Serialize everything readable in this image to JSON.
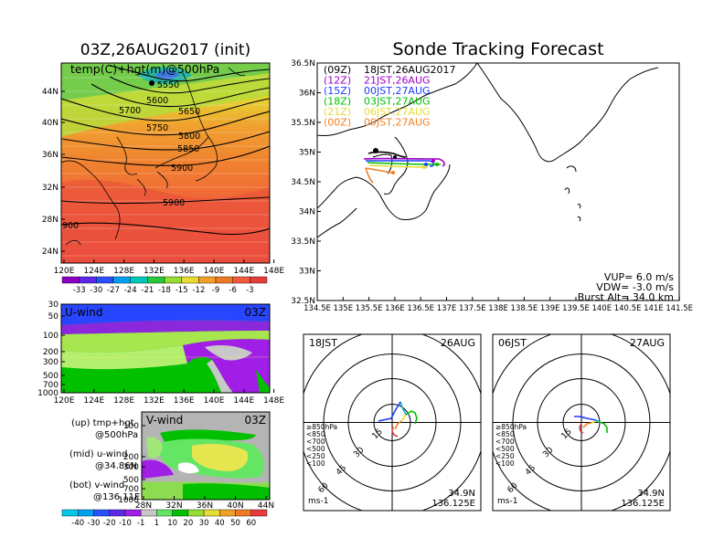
{
  "header": {
    "init_title": "03Z,26AUG2017 (init)",
    "main_title": "Sonde Tracking Forecast"
  },
  "colors": {
    "purple": "#a000c8",
    "blue": "#1e3cff",
    "green": "#00c000",
    "yellow": "#e6dc32",
    "orange": "#f08228",
    "red": "#e63c3c",
    "black": "#000000",
    "sea": "#ffffff"
  },
  "map500": {
    "label": "temp(C)+hgt(m)@500hPa",
    "lat_ticks": [
      "44N",
      "40N",
      "36N",
      "32N",
      "28N",
      "24N"
    ],
    "lon_ticks": [
      "120E",
      "124E",
      "128E",
      "132E",
      "136E",
      "140E",
      "144E",
      "148E"
    ],
    "contour_labels": [
      "5550",
      "5600",
      "5650",
      "5700",
      "5750",
      "5800",
      "5850",
      "5900",
      "5900",
      "900"
    ],
    "colorbar_labels": [
      "-33",
      "-30",
      "-27",
      "-24",
      "-21",
      "-18",
      "-15",
      "-12",
      "-9",
      "-6",
      "-3"
    ]
  },
  "uwind": {
    "label": "U-wind",
    "time": "03Z",
    "p_ticks": [
      "30",
      "50",
      "100",
      "200",
      "300",
      "500",
      "700",
      "1000"
    ],
    "lon_ticks": [
      "120E",
      "124E",
      "128E",
      "132E",
      "136E",
      "140E",
      "144E",
      "148E"
    ]
  },
  "vwind": {
    "label": "V-wind",
    "time": "03Z",
    "p_ticks": [
      "100",
      "200",
      "300",
      "500",
      "700",
      "1000"
    ],
    "lat_ticks": [
      "28N",
      "32N",
      "36N",
      "40N",
      "44N"
    ]
  },
  "legend_text": {
    "up1": "(up)  tmp+hgt",
    "up2": "@500hPa",
    "mid1": "(mid)  u-wind",
    "mid2": "@34.86N",
    "bot1": "(bot)  v-wind",
    "bot2": "@136.11E"
  },
  "wind_colorbar_labels": [
    "-40",
    "-30",
    "-20",
    "-10",
    "-1",
    "1",
    "10",
    "20",
    "30",
    "40",
    "50",
    "60"
  ],
  "track_map": {
    "lat_ticks": [
      "36.5N",
      "36N",
      "35.5N",
      "35N",
      "34.5N",
      "34N",
      "33.5N",
      "33N",
      "32.5N"
    ],
    "lon_ticks": [
      "134.5E",
      "135E",
      "135.5E",
      "136E",
      "136.5E",
      "137E",
      "137.5E",
      "138E",
      "138.5E",
      "139E",
      "139.5E",
      "140E",
      "140.5E",
      "141E",
      "141.5E"
    ],
    "legend": [
      {
        "utc": "(09Z)",
        "jst": "18JST,26AUG2017",
        "color": "#000000"
      },
      {
        "utc": "(12Z)",
        "jst": "21JST,26AUG",
        "color": "#a000c8"
      },
      {
        "utc": "(15Z)",
        "jst": "00JST,27AUG",
        "color": "#1e3cff"
      },
      {
        "utc": "(18Z)",
        "jst": "03JST,27AUG",
        "color": "#00c000"
      },
      {
        "utc": "(21Z)",
        "jst": "06JST,27AUG",
        "color": "#e6dc32"
      },
      {
        "utc": "(00Z)",
        "jst": "09JST,27AUG",
        "color": "#f08228"
      }
    ],
    "vup": "VUP=  6.0 m/s",
    "vdw": "VDW=  -3.0 m/s",
    "burst": "Burst Alt=  34.0 km"
  },
  "hodographs": [
    {
      "time": "18JST",
      "date": "26AUG",
      "rings": [
        "15",
        "30",
        "45",
        "60"
      ],
      "lat": "34.9N",
      "lon": "136.125E",
      "unit": "ms-1"
    },
    {
      "time": "06JST",
      "date": "27AUG",
      "rings": [
        "15",
        "30",
        "45",
        "60"
      ],
      "lat": "34.9N",
      "lon": "136.125E",
      "unit": "ms-1"
    }
  ],
  "hodo_levels": [
    {
      "label": "≥850hPa",
      "color": "#e63c3c"
    },
    {
      "label": "<850",
      "color": "#f08228"
    },
    {
      "label": "<700",
      "color": "#e6dc32"
    },
    {
      "label": "<500",
      "color": "#00c000"
    },
    {
      "label": "<250",
      "color": "#00b4d2"
    },
    {
      "label": "<100",
      "color": "#1e3cff"
    }
  ]
}
